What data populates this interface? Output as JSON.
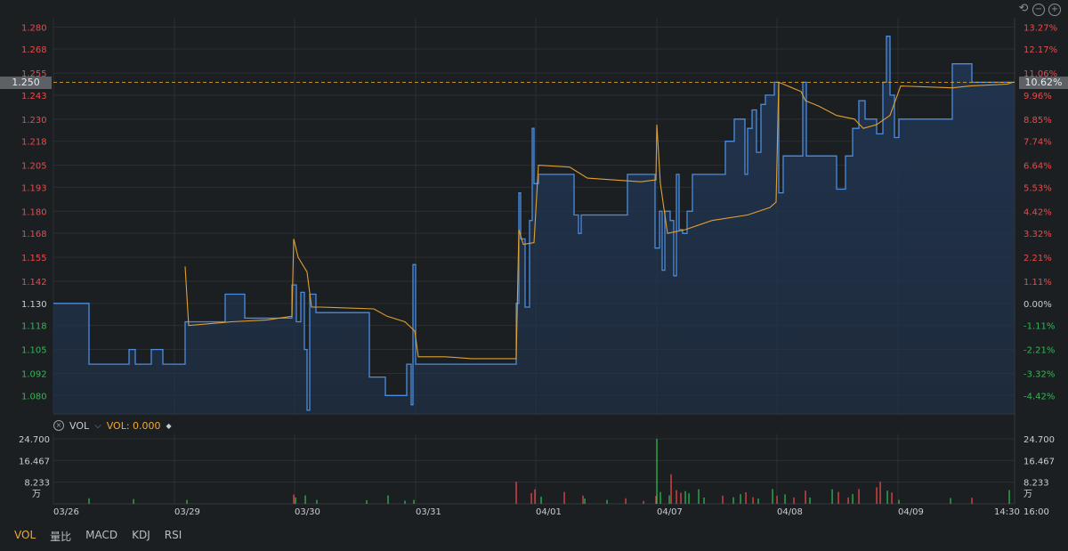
{
  "chart_data": [
    {
      "type": "line",
      "y_ticks": [
        "1.280",
        "1.268",
        "1.255",
        "1.243",
        "1.230",
        "1.218",
        "1.205",
        "1.193",
        "1.180",
        "1.168",
        "1.155",
        "1.142",
        "1.130",
        "1.118",
        "1.105",
        "1.092",
        "1.080"
      ],
      "pct_ticks": [
        "13.27%",
        "12.17%",
        "11.06%",
        "9.96%",
        "8.85%",
        "7.74%",
        "6.64%",
        "5.53%",
        "4.42%",
        "3.32%",
        "2.21%",
        "1.11%",
        "0.00%",
        "-1.11%",
        "-2.21%",
        "-3.32%",
        "-4.42%"
      ],
      "x_ticks": [
        "03/26",
        "03/29",
        "03/30",
        "03/31",
        "04/01",
        "04/07",
        "04/08",
        "04/09",
        "14:30",
        "16:00"
      ],
      "base_price": 1.13,
      "current_price": "1.250",
      "current_pct": "10.62%",
      "ylim": [
        1.07,
        1.285
      ],
      "series": [
        {
          "color": "#4a8de0",
          "points": [
            [
              0,
              1.13
            ],
            [
              40,
              1.13
            ],
            [
              40,
              1.097
            ],
            [
              85,
              1.097
            ],
            [
              85,
              1.105
            ],
            [
              92,
              1.105
            ],
            [
              92,
              1.097
            ],
            [
              110,
              1.097
            ],
            [
              110,
              1.105
            ],
            [
              123,
              1.105
            ],
            [
              123,
              1.097
            ],
            [
              148,
              1.097
            ],
            [
              148,
              1.12
            ],
            [
              193,
              1.12
            ],
            [
              193,
              1.135
            ],
            [
              215,
              1.135
            ],
            [
              215,
              1.122
            ],
            [
              268,
              1.122
            ],
            [
              268,
              1.14
            ],
            [
              273,
              1.14
            ],
            [
              273,
              1.12
            ],
            [
              278,
              1.12
            ],
            [
              278,
              1.136
            ],
            [
              282,
              1.136
            ],
            [
              282,
              1.105
            ],
            [
              285,
              1.105
            ],
            [
              285,
              1.072
            ],
            [
              288,
              1.072
            ],
            [
              288,
              1.135
            ],
            [
              295,
              1.135
            ],
            [
              295,
              1.125
            ],
            [
              355,
              1.125
            ],
            [
              355,
              1.09
            ],
            [
              373,
              1.09
            ],
            [
              373,
              1.08
            ],
            [
              397,
              1.08
            ],
            [
              397,
              1.097
            ],
            [
              402,
              1.097
            ],
            [
              402,
              1.075
            ],
            [
              404,
              1.075
            ],
            [
              404,
              1.151
            ],
            [
              407,
              1.151
            ],
            [
              407,
              1.097
            ],
            [
              520,
              1.097
            ],
            [
              520,
              1.13
            ],
            [
              523,
              1.13
            ],
            [
              523,
              1.19
            ],
            [
              525,
              1.19
            ],
            [
              525,
              1.165
            ],
            [
              530,
              1.165
            ],
            [
              530,
              1.128
            ],
            [
              535,
              1.128
            ],
            [
              535,
              1.175
            ],
            [
              538,
              1.175
            ],
            [
              538,
              1.225
            ],
            [
              540,
              1.225
            ],
            [
              540,
              1.195
            ],
            [
              545,
              1.195
            ],
            [
              545,
              1.2
            ],
            [
              585,
              1.2
            ],
            [
              585,
              1.178
            ],
            [
              590,
              1.178
            ],
            [
              590,
              1.168
            ],
            [
              593,
              1.168
            ],
            [
              593,
              1.178
            ],
            [
              645,
              1.178
            ],
            [
              645,
              1.2
            ],
            [
              676,
              1.2
            ],
            [
              676,
              1.16
            ],
            [
              681,
              1.16
            ],
            [
              681,
              1.18
            ],
            [
              684,
              1.18
            ],
            [
              684,
              1.148
            ],
            [
              687,
              1.148
            ],
            [
              687,
              1.18
            ],
            [
              693,
              1.18
            ],
            [
              693,
              1.175
            ],
            [
              697,
              1.175
            ],
            [
              697,
              1.145
            ],
            [
              700,
              1.145
            ],
            [
              700,
              1.2
            ],
            [
              703,
              1.2
            ],
            [
              703,
              1.17
            ],
            [
              707,
              1.17
            ],
            [
              707,
              1.168
            ],
            [
              712,
              1.168
            ],
            [
              712,
              1.18
            ],
            [
              718,
              1.18
            ],
            [
              718,
              1.2
            ],
            [
              755,
              1.2
            ],
            [
              755,
              1.218
            ],
            [
              765,
              1.218
            ],
            [
              765,
              1.23
            ],
            [
              777,
              1.23
            ],
            [
              777,
              1.2
            ],
            [
              780,
              1.2
            ],
            [
              780,
              1.225
            ],
            [
              785,
              1.225
            ],
            [
              785,
              1.235
            ],
            [
              790,
              1.235
            ],
            [
              790,
              1.212
            ],
            [
              795,
              1.212
            ],
            [
              795,
              1.238
            ],
            [
              800,
              1.238
            ],
            [
              800,
              1.243
            ],
            [
              810,
              1.243
            ],
            [
              810,
              1.25
            ],
            [
              815,
              1.25
            ],
            [
              815,
              1.19
            ],
            [
              820,
              1.19
            ],
            [
              820,
              1.21
            ],
            [
              842,
              1.21
            ],
            [
              842,
              1.25
            ],
            [
              846,
              1.25
            ],
            [
              846,
              1.21
            ],
            [
              880,
              1.21
            ],
            [
              880,
              1.192
            ],
            [
              890,
              1.192
            ],
            [
              890,
              1.21
            ],
            [
              898,
              1.21
            ],
            [
              898,
              1.225
            ],
            [
              905,
              1.225
            ],
            [
              905,
              1.24
            ],
            [
              912,
              1.24
            ],
            [
              912,
              1.23
            ],
            [
              925,
              1.23
            ],
            [
              925,
              1.222
            ],
            [
              932,
              1.222
            ],
            [
              932,
              1.25
            ],
            [
              936,
              1.25
            ],
            [
              936,
              1.275
            ],
            [
              940,
              1.275
            ],
            [
              940,
              1.243
            ],
            [
              945,
              1.243
            ],
            [
              945,
              1.22
            ],
            [
              950,
              1.22
            ],
            [
              950,
              1.23
            ],
            [
              1010,
              1.23
            ],
            [
              1010,
              1.26
            ],
            [
              1032,
              1.26
            ],
            [
              1032,
              1.25
            ],
            [
              1080,
              1.25
            ]
          ]
        },
        {
          "color": "#e0a030",
          "points": [
            [
              148,
              1.15
            ],
            [
              152,
              1.118
            ],
            [
              200,
              1.12
            ],
            [
              240,
              1.121
            ],
            [
              268,
              1.123
            ],
            [
              270,
              1.165
            ],
            [
              275,
              1.155
            ],
            [
              285,
              1.147
            ],
            [
              290,
              1.128
            ],
            [
              300,
              1.128
            ],
            [
              360,
              1.127
            ],
            [
              375,
              1.123
            ],
            [
              395,
              1.12
            ],
            [
              406,
              1.115
            ],
            [
              410,
              1.101
            ],
            [
              440,
              1.101
            ],
            [
              470,
              1.1
            ],
            [
              520,
              1.1
            ],
            [
              523,
              1.17
            ],
            [
              528,
              1.162
            ],
            [
              540,
              1.163
            ],
            [
              545,
              1.205
            ],
            [
              580,
              1.204
            ],
            [
              600,
              1.198
            ],
            [
              660,
              1.196
            ],
            [
              677,
              1.197
            ],
            [
              678,
              1.227
            ],
            [
              682,
              1.195
            ],
            [
              690,
              1.168
            ],
            [
              710,
              1.17
            ],
            [
              740,
              1.175
            ],
            [
              780,
              1.178
            ],
            [
              805,
              1.182
            ],
            [
              812,
              1.185
            ],
            [
              815,
              1.25
            ],
            [
              840,
              1.245
            ],
            [
              845,
              1.24
            ],
            [
              860,
              1.237
            ],
            [
              880,
              1.232
            ],
            [
              900,
              1.23
            ],
            [
              910,
              1.225
            ],
            [
              925,
              1.227
            ],
            [
              940,
              1.232
            ],
            [
              952,
              1.248
            ],
            [
              1010,
              1.247
            ],
            [
              1030,
              1.248
            ],
            [
              1072,
              1.249
            ],
            [
              1078,
              1.25
            ]
          ]
        }
      ]
    },
    {
      "type": "bar",
      "label": "VOL",
      "value_label": "VOL: 0.000",
      "y_ticks": [
        "24.700",
        "16.467",
        "8.233"
      ],
      "unit": "万",
      "ylim": [
        0,
        24.7
      ],
      "bars": [
        [
          40,
          2.1,
          "g"
        ],
        [
          90,
          1.8,
          "g"
        ],
        [
          150,
          1.5,
          "g"
        ],
        [
          270,
          3.5,
          "r"
        ],
        [
          272,
          2.4,
          "g"
        ],
        [
          283,
          3.2,
          "g"
        ],
        [
          296,
          1.5,
          "g"
        ],
        [
          352,
          1.4,
          "g"
        ],
        [
          376,
          3.2,
          "g"
        ],
        [
          395,
          1.2,
          "g"
        ],
        [
          405,
          1.5,
          "g"
        ],
        [
          520,
          8.4,
          "r"
        ],
        [
          537,
          4.1,
          "r"
        ],
        [
          541,
          5.5,
          "r"
        ],
        [
          548,
          2.7,
          "g"
        ],
        [
          574,
          4.5,
          "r"
        ],
        [
          595,
          3.1,
          "r"
        ],
        [
          597,
          2.0,
          "g"
        ],
        [
          622,
          1.5,
          "g"
        ],
        [
          643,
          2.1,
          "r"
        ],
        [
          663,
          1.1,
          "r"
        ],
        [
          677,
          3.0,
          "r"
        ],
        [
          678,
          24.7,
          "g"
        ],
        [
          682,
          4.5,
          "g"
        ],
        [
          692,
          3.2,
          "g"
        ],
        [
          694,
          11.2,
          "r"
        ],
        [
          700,
          5.2,
          "r"
        ],
        [
          705,
          4.2,
          "r"
        ],
        [
          710,
          4.8,
          "g"
        ],
        [
          714,
          4.0,
          "g"
        ],
        [
          725,
          5.5,
          "g"
        ],
        [
          731,
          2.4,
          "g"
        ],
        [
          752,
          3.1,
          "r"
        ],
        [
          764,
          2.5,
          "g"
        ],
        [
          772,
          3.7,
          "g"
        ],
        [
          778,
          4.4,
          "r"
        ],
        [
          786,
          2.5,
          "r"
        ],
        [
          792,
          2.0,
          "g"
        ],
        [
          808,
          5.6,
          "g"
        ],
        [
          813,
          3.0,
          "r"
        ],
        [
          822,
          3.6,
          "g"
        ],
        [
          832,
          2.4,
          "r"
        ],
        [
          845,
          5.0,
          "r"
        ],
        [
          850,
          2.4,
          "g"
        ],
        [
          875,
          5.5,
          "g"
        ],
        [
          882,
          4.5,
          "r"
        ],
        [
          893,
          2.4,
          "r"
        ],
        [
          898,
          3.7,
          "g"
        ],
        [
          905,
          5.6,
          "r"
        ],
        [
          925,
          6.3,
          "r"
        ],
        [
          929,
          8.4,
          "r"
        ],
        [
          937,
          5.0,
          "g"
        ],
        [
          942,
          4.3,
          "r"
        ],
        [
          950,
          1.5,
          "g"
        ],
        [
          1008,
          2.2,
          "g"
        ],
        [
          1032,
          2.3,
          "r"
        ],
        [
          1074,
          5.2,
          "g"
        ]
      ]
    }
  ],
  "volume_header": {
    "name": "VOL",
    "value": "VOL: 0.000"
  },
  "tabs": [
    "VOL",
    "量比",
    "MACD",
    "KDJ",
    "RSI"
  ],
  "colors": {
    "up": "#e84a4a",
    "down": "#2fb94f",
    "area": "#20344f",
    "accent": "#f0a830"
  }
}
